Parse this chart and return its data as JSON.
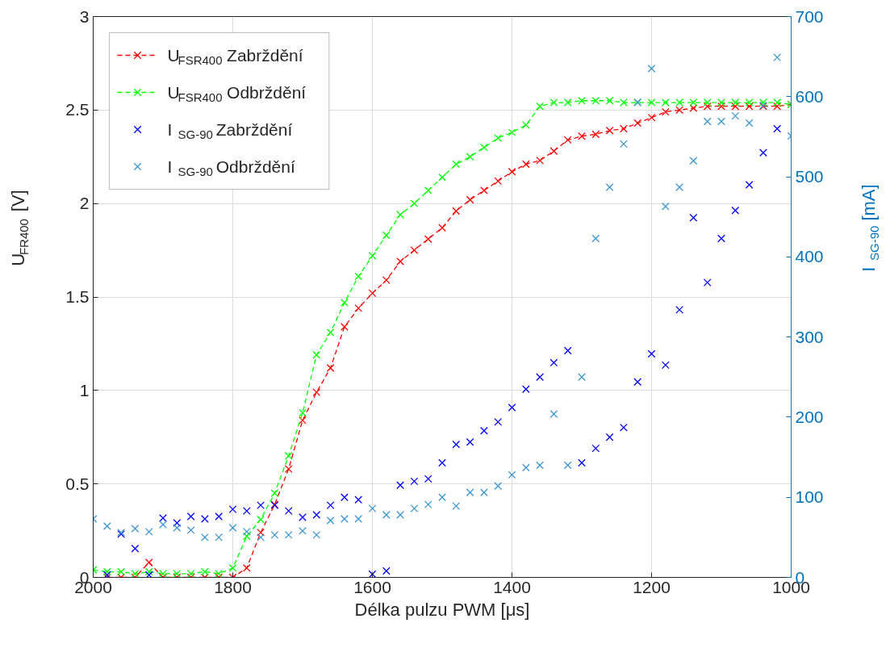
{
  "chart_data": {
    "type": "line",
    "xlabel": "Délka pulzu PWM [μs]",
    "ylabel": "U$_{FR400}$ [V]",
    "y2label": "I$_{SG-90}$ [mA]",
    "xlim": [
      2000,
      1000
    ],
    "xticks": [
      2000,
      1800,
      1600,
      1400,
      1200,
      1000
    ],
    "ylim": [
      0,
      3
    ],
    "yticks": [
      0,
      0.5,
      1,
      1.5,
      2,
      2.5,
      3
    ],
    "y2lim": [
      0,
      700
    ],
    "y2ticks": [
      0,
      100,
      200,
      300,
      400,
      500,
      600,
      700
    ],
    "grid": true,
    "legend": "top left",
    "series": [
      {
        "name": "U$_{FSR400}$ Zabrždění",
        "color": "#ff0000",
        "marker": "cross",
        "line_style": "dashed",
        "x": [
          1980,
          1960,
          1940,
          1920,
          1900,
          1880,
          1860,
          1840,
          1820,
          1800,
          1780,
          1760,
          1740,
          1720,
          1700,
          1680,
          1660,
          1640,
          1620,
          1600,
          1580,
          1560,
          1540,
          1520,
          1500,
          1480,
          1460,
          1440,
          1420,
          1400,
          1380,
          1360,
          1340,
          1320,
          1300,
          1280,
          1260,
          1240,
          1220,
          1200,
          1180,
          1160,
          1140,
          1120,
          1100,
          1080,
          1060,
          1040,
          1020,
          1000
        ],
        "values": [
          0,
          0,
          0,
          0.08,
          0,
          0,
          0,
          0,
          0,
          0,
          0.05,
          0.24,
          0.39,
          0.58,
          0.84,
          0.99,
          1.12,
          1.34,
          1.44,
          1.52,
          1.59,
          1.69,
          1.75,
          1.81,
          1.87,
          1.96,
          2.02,
          2.07,
          2.12,
          2.17,
          2.21,
          2.23,
          2.28,
          2.34,
          2.36,
          2.37,
          2.39,
          2.4,
          2.43,
          2.46,
          2.49,
          2.5,
          2.51,
          2.52,
          2.52,
          2.52,
          2.52,
          2.52,
          2.52,
          2.53
        ]
      },
      {
        "name": "U$_{FSR400}$ Odbrždění",
        "color": "#00ff00",
        "marker": "cross",
        "line_style": "dashed",
        "x": [
          2000,
          1980,
          1960,
          1940,
          1920,
          1900,
          1880,
          1860,
          1840,
          1820,
          1800,
          1780,
          1760,
          1740,
          1720,
          1700,
          1680,
          1660,
          1640,
          1620,
          1600,
          1580,
          1560,
          1540,
          1520,
          1500,
          1480,
          1460,
          1440,
          1420,
          1400,
          1380,
          1360,
          1340,
          1320,
          1300,
          1280,
          1260,
          1240,
          1220,
          1200,
          1180,
          1160,
          1140,
          1120,
          1100,
          1080,
          1060,
          1040,
          1020,
          1000
        ],
        "values": [
          0.04,
          0.03,
          0.03,
          0.02,
          0.03,
          0.02,
          0.02,
          0.02,
          0.03,
          0.02,
          0.05,
          0.22,
          0.31,
          0.45,
          0.65,
          0.88,
          1.19,
          1.31,
          1.47,
          1.61,
          1.72,
          1.83,
          1.94,
          2.0,
          2.07,
          2.14,
          2.21,
          2.25,
          2.3,
          2.35,
          2.38,
          2.42,
          2.52,
          2.54,
          2.54,
          2.55,
          2.55,
          2.55,
          2.54,
          2.54,
          2.54,
          2.54,
          2.54,
          2.54,
          2.54,
          2.54,
          2.54,
          2.54,
          2.54,
          2.54,
          2.53
        ]
      },
      {
        "name": "I$_{SG-90}$ Zabrždění",
        "type": "scatter",
        "axis": "y2",
        "color": "#0000ff",
        "marker": "cross",
        "x": [
          1980,
          1960,
          1940,
          1920,
          1900,
          1880,
          1860,
          1840,
          1820,
          1800,
          1780,
          1760,
          1740,
          1720,
          1700,
          1680,
          1660,
          1640,
          1620,
          1600,
          1580,
          1560,
          1540,
          1520,
          1500,
          1480,
          1460,
          1440,
          1420,
          1400,
          1380,
          1360,
          1340,
          1320,
          1300,
          1280,
          1260,
          1240,
          1220,
          1200,
          1180,
          1160,
          1140,
          1120,
          1100,
          1080,
          1060,
          1040,
          1020
        ],
        "values": [
          3,
          54,
          36,
          3,
          74,
          68,
          76,
          73,
          76,
          85,
          83,
          90,
          90,
          83,
          75,
          78,
          90,
          100,
          97,
          4,
          8,
          115,
          120,
          123,
          143,
          166,
          169,
          183,
          194,
          212,
          235,
          250,
          268,
          283,
          143,
          161,
          175,
          187,
          244,
          279,
          265,
          334,
          449,
          368,
          423,
          458,
          490,
          530,
          560
        ]
      },
      {
        "name": "I$_{SG-90}$ Odbrždění",
        "type": "scatter",
        "axis": "y2",
        "color": "#3c96d2",
        "marker": "cross",
        "x": [
          2000,
          1980,
          1960,
          1940,
          1920,
          1900,
          1880,
          1860,
          1840,
          1820,
          1800,
          1780,
          1760,
          1740,
          1720,
          1700,
          1680,
          1660,
          1640,
          1620,
          1600,
          1580,
          1560,
          1540,
          1520,
          1500,
          1480,
          1460,
          1440,
          1420,
          1400,
          1380,
          1360,
          1340,
          1320,
          1300,
          1280,
          1260,
          1240,
          1220,
          1200,
          1180,
          1160,
          1140,
          1120,
          1100,
          1080,
          1060,
          1040,
          1020,
          1000
        ],
        "values": [
          73,
          64,
          56,
          61,
          57,
          66,
          62,
          59,
          50,
          50,
          62,
          57,
          50,
          53,
          53,
          58,
          53,
          71,
          73,
          73,
          86,
          78,
          78,
          86,
          91,
          100,
          89,
          106,
          106,
          114,
          128,
          137,
          140,
          204,
          140,
          250,
          423,
          487,
          541,
          593,
          635,
          463,
          487,
          520,
          569,
          569,
          576,
          567,
          589,
          649,
          551
        ]
      }
    ]
  }
}
